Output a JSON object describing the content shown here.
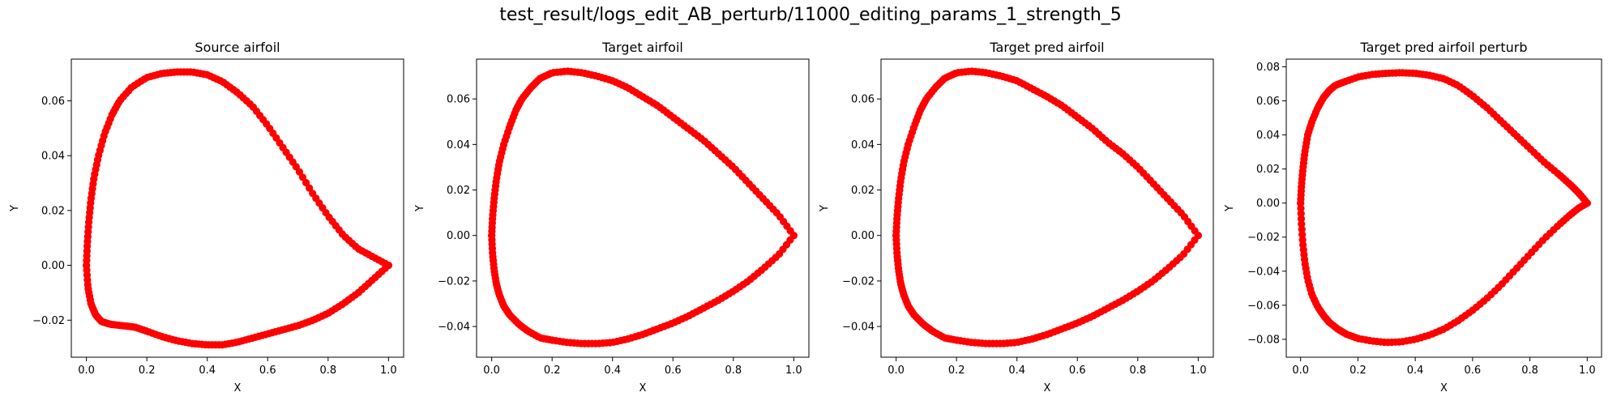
{
  "suptitle": "test_result/logs_edit_AB_perturb/11000_editing_params_1_strength_5",
  "marker_color": "#ff0000",
  "chart_data": [
    {
      "type": "scatter",
      "title": "Source airfoil",
      "xlabel": "X",
      "ylabel": "Y",
      "xlim": [
        -0.05,
        1.05
      ],
      "ylim": [
        -0.0335,
        0.0752
      ],
      "xticks": [
        0.0,
        0.2,
        0.4,
        0.6,
        0.8,
        1.0
      ],
      "xtick_labels": [
        "0.0",
        "0.2",
        "0.4",
        "0.6",
        "0.8",
        "1.0"
      ],
      "yticks": [
        -0.02,
        0.0,
        0.02,
        0.04,
        0.06
      ],
      "ytick_labels": [
        "−0.02",
        "0.00",
        "0.02",
        "0.04",
        "0.06"
      ],
      "upper": {
        "x": [
          0.0,
          0.003,
          0.008,
          0.015,
          0.025,
          0.04,
          0.06,
          0.085,
          0.11,
          0.15,
          0.2,
          0.25,
          0.3,
          0.35,
          0.4,
          0.45,
          0.5,
          0.55,
          0.6,
          0.65,
          0.7,
          0.75,
          0.8,
          0.85,
          0.9,
          0.95,
          1.0
        ],
        "y": [
          0.0,
          0.008,
          0.016,
          0.024,
          0.032,
          0.04,
          0.048,
          0.055,
          0.06,
          0.065,
          0.0685,
          0.07,
          0.0705,
          0.0705,
          0.0695,
          0.067,
          0.063,
          0.058,
          0.051,
          0.043,
          0.035,
          0.026,
          0.018,
          0.011,
          0.006,
          0.003,
          0.0
        ]
      },
      "lower": {
        "x": [
          0.0,
          0.005,
          0.015,
          0.03,
          0.05,
          0.08,
          0.12,
          0.16,
          0.2,
          0.25,
          0.3,
          0.35,
          0.4,
          0.45,
          0.5,
          0.55,
          0.6,
          0.65,
          0.7,
          0.75,
          0.8,
          0.85,
          0.9,
          0.95,
          1.0
        ],
        "y": [
          0.0,
          -0.008,
          -0.014,
          -0.018,
          -0.0205,
          -0.0215,
          -0.022,
          -0.0225,
          -0.024,
          -0.026,
          -0.0275,
          -0.0285,
          -0.029,
          -0.029,
          -0.028,
          -0.0265,
          -0.025,
          -0.0235,
          -0.022,
          -0.02,
          -0.0175,
          -0.014,
          -0.01,
          -0.005,
          0.0
        ]
      }
    },
    {
      "type": "scatter",
      "title": "Target airfoil",
      "xlabel": "X",
      "ylabel": "Y",
      "xlim": [
        -0.05,
        1.05
      ],
      "ylim": [
        -0.0535,
        0.0775
      ],
      "xticks": [
        0.0,
        0.2,
        0.4,
        0.6,
        0.8,
        1.0
      ],
      "xtick_labels": [
        "0.0",
        "0.2",
        "0.4",
        "0.6",
        "0.8",
        "1.0"
      ],
      "yticks": [
        -0.04,
        -0.02,
        0.0,
        0.02,
        0.04,
        0.06
      ],
      "ytick_labels": [
        "−0.04",
        "−0.02",
        "0.00",
        "0.02",
        "0.04",
        "0.06"
      ],
      "upper": {
        "x": [
          0.0,
          0.003,
          0.008,
          0.015,
          0.025,
          0.04,
          0.06,
          0.08,
          0.1,
          0.13,
          0.16,
          0.2,
          0.25,
          0.3,
          0.35,
          0.4,
          0.45,
          0.5,
          0.55,
          0.6,
          0.65,
          0.7,
          0.75,
          0.8,
          0.85,
          0.9,
          0.95,
          1.0
        ],
        "y": [
          0.0,
          0.008,
          0.016,
          0.024,
          0.032,
          0.04,
          0.048,
          0.055,
          0.06,
          0.065,
          0.069,
          0.0715,
          0.0722,
          0.0715,
          0.07,
          0.068,
          0.065,
          0.061,
          0.057,
          0.052,
          0.047,
          0.042,
          0.036,
          0.03,
          0.023,
          0.016,
          0.009,
          0.0
        ]
      },
      "lower": {
        "x": [
          0.0,
          0.003,
          0.008,
          0.015,
          0.025,
          0.04,
          0.06,
          0.09,
          0.12,
          0.16,
          0.2,
          0.25,
          0.3,
          0.35,
          0.4,
          0.45,
          0.5,
          0.55,
          0.6,
          0.65,
          0.7,
          0.75,
          0.8,
          0.85,
          0.9,
          0.95,
          1.0
        ],
        "y": [
          0.0,
          -0.008,
          -0.015,
          -0.021,
          -0.026,
          -0.031,
          -0.035,
          -0.039,
          -0.042,
          -0.045,
          -0.046,
          -0.047,
          -0.0475,
          -0.0475,
          -0.047,
          -0.0455,
          -0.0435,
          -0.041,
          -0.0385,
          -0.0355,
          -0.032,
          -0.0285,
          -0.0245,
          -0.02,
          -0.0145,
          -0.0085,
          0.0
        ]
      }
    },
    {
      "type": "scatter",
      "title": "Target pred airfoil",
      "xlabel": "X",
      "ylabel": "Y",
      "xlim": [
        -0.05,
        1.05
      ],
      "ylim": [
        -0.0535,
        0.0775
      ],
      "xticks": [
        0.0,
        0.2,
        0.4,
        0.6,
        0.8,
        1.0
      ],
      "xtick_labels": [
        "0.0",
        "0.2",
        "0.4",
        "0.6",
        "0.8",
        "1.0"
      ],
      "yticks": [
        -0.04,
        -0.02,
        0.0,
        0.02,
        0.04,
        0.06
      ],
      "ytick_labels": [
        "−0.04",
        "−0.02",
        "0.00",
        "0.02",
        "0.04",
        "0.06"
      ],
      "upper": {
        "x": [
          0.0,
          0.003,
          0.008,
          0.015,
          0.025,
          0.04,
          0.06,
          0.08,
          0.1,
          0.13,
          0.16,
          0.2,
          0.25,
          0.3,
          0.35,
          0.4,
          0.45,
          0.5,
          0.55,
          0.6,
          0.65,
          0.7,
          0.75,
          0.8,
          0.85,
          0.9,
          0.95,
          1.0
        ],
        "y": [
          0.0,
          0.008,
          0.016,
          0.024,
          0.032,
          0.04,
          0.048,
          0.055,
          0.06,
          0.065,
          0.069,
          0.0715,
          0.0722,
          0.0715,
          0.07,
          0.068,
          0.0645,
          0.061,
          0.057,
          0.052,
          0.047,
          0.041,
          0.036,
          0.03,
          0.023,
          0.016,
          0.009,
          0.0
        ]
      },
      "lower": {
        "x": [
          0.0,
          0.003,
          0.008,
          0.015,
          0.025,
          0.04,
          0.06,
          0.09,
          0.12,
          0.16,
          0.2,
          0.25,
          0.3,
          0.35,
          0.4,
          0.45,
          0.5,
          0.55,
          0.6,
          0.65,
          0.7,
          0.75,
          0.8,
          0.85,
          0.9,
          0.95,
          1.0
        ],
        "y": [
          0.0,
          -0.008,
          -0.015,
          -0.021,
          -0.026,
          -0.031,
          -0.035,
          -0.039,
          -0.042,
          -0.045,
          -0.046,
          -0.047,
          -0.0475,
          -0.0475,
          -0.047,
          -0.0455,
          -0.0435,
          -0.041,
          -0.0385,
          -0.0355,
          -0.032,
          -0.0285,
          -0.0245,
          -0.02,
          -0.0145,
          -0.0085,
          0.0
        ]
      }
    },
    {
      "type": "scatter",
      "title": "Target pred airfoil perturb",
      "xlabel": "X",
      "ylabel": "Y",
      "xlim": [
        -0.05,
        1.05
      ],
      "ylim": [
        -0.0905,
        0.0845
      ],
      "xticks": [
        0.0,
        0.2,
        0.4,
        0.6,
        0.8,
        1.0
      ],
      "xtick_labels": [
        "0.0",
        "0.2",
        "0.4",
        "0.6",
        "0.8",
        "1.0"
      ],
      "yticks": [
        -0.08,
        -0.06,
        -0.04,
        -0.02,
        0.0,
        0.02,
        0.04,
        0.06,
        0.08
      ],
      "ytick_labels": [
        "−0.08",
        "−0.06",
        "−0.04",
        "−0.02",
        "0.00",
        "0.02",
        "0.04",
        "0.06",
        "0.08"
      ],
      "upper": {
        "x": [
          0.0,
          0.003,
          0.008,
          0.015,
          0.025,
          0.04,
          0.06,
          0.08,
          0.1,
          0.12,
          0.15,
          0.2,
          0.25,
          0.3,
          0.35,
          0.4,
          0.45,
          0.5,
          0.55,
          0.6,
          0.65,
          0.7,
          0.75,
          0.8,
          0.85,
          0.9,
          0.94,
          0.97,
          1.0
        ],
        "y": [
          0.0,
          0.01,
          0.02,
          0.03,
          0.04,
          0.048,
          0.056,
          0.062,
          0.066,
          0.069,
          0.071,
          0.074,
          0.0755,
          0.0762,
          0.0765,
          0.0762,
          0.075,
          0.073,
          0.069,
          0.063,
          0.056,
          0.048,
          0.04,
          0.032,
          0.024,
          0.017,
          0.011,
          0.006,
          0.0
        ]
      },
      "lower": {
        "x": [
          0.0,
          0.003,
          0.008,
          0.015,
          0.025,
          0.04,
          0.06,
          0.08,
          0.1,
          0.13,
          0.16,
          0.2,
          0.25,
          0.3,
          0.35,
          0.4,
          0.45,
          0.5,
          0.55,
          0.6,
          0.65,
          0.7,
          0.75,
          0.8,
          0.85,
          0.9,
          0.94,
          0.97,
          1.0
        ],
        "y": [
          0.0,
          -0.012,
          -0.024,
          -0.035,
          -0.045,
          -0.054,
          -0.061,
          -0.066,
          -0.07,
          -0.074,
          -0.077,
          -0.0795,
          -0.081,
          -0.0818,
          -0.0815,
          -0.08,
          -0.0775,
          -0.074,
          -0.069,
          -0.063,
          -0.056,
          -0.048,
          -0.039,
          -0.03,
          -0.021,
          -0.013,
          -0.007,
          -0.003,
          0.0
        ]
      }
    }
  ]
}
